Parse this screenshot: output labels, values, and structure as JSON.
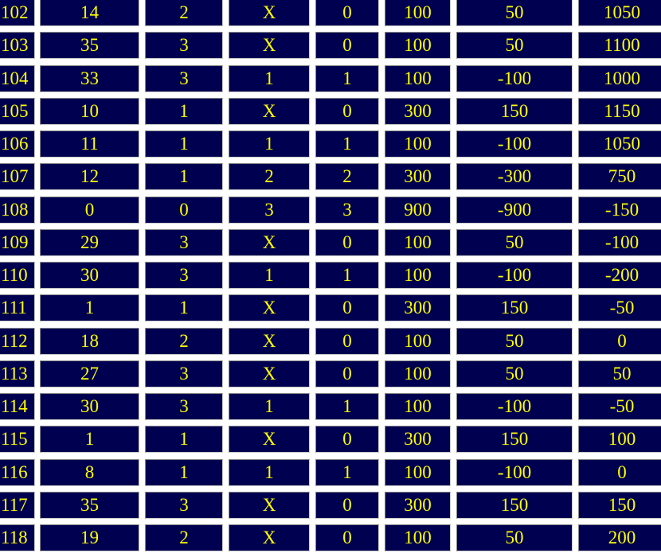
{
  "table": {
    "rows": [
      [
        "102",
        "14",
        "2",
        "X",
        "0",
        "100",
        "50",
        "1050"
      ],
      [
        "103",
        "35",
        "3",
        "X",
        "0",
        "100",
        "50",
        "1100"
      ],
      [
        "104",
        "33",
        "3",
        "1",
        "1",
        "100",
        "-100",
        "1000"
      ],
      [
        "105",
        "10",
        "1",
        "X",
        "0",
        "300",
        "150",
        "1150"
      ],
      [
        "106",
        "11",
        "1",
        "1",
        "1",
        "100",
        "-100",
        "1050"
      ],
      [
        "107",
        "12",
        "1",
        "2",
        "2",
        "300",
        "-300",
        "750"
      ],
      [
        "108",
        "0",
        "0",
        "3",
        "3",
        "900",
        "-900",
        "-150"
      ],
      [
        "109",
        "29",
        "3",
        "X",
        "0",
        "100",
        "50",
        "-100"
      ],
      [
        "110",
        "30",
        "3",
        "1",
        "1",
        "100",
        "-100",
        "-200"
      ],
      [
        "111",
        "1",
        "1",
        "X",
        "0",
        "300",
        "150",
        "-50"
      ],
      [
        "112",
        "18",
        "2",
        "X",
        "0",
        "100",
        "50",
        "0"
      ],
      [
        "113",
        "27",
        "3",
        "X",
        "0",
        "100",
        "50",
        "50"
      ],
      [
        "114",
        "30",
        "3",
        "1",
        "1",
        "100",
        "-100",
        "-50"
      ],
      [
        "115",
        "1",
        "1",
        "X",
        "0",
        "300",
        "150",
        "100"
      ],
      [
        "116",
        "8",
        "1",
        "1",
        "1",
        "100",
        "-100",
        "0"
      ],
      [
        "117",
        "35",
        "3",
        "X",
        "0",
        "300",
        "150",
        "150"
      ],
      [
        "118",
        "19",
        "2",
        "X",
        "0",
        "100",
        "50",
        "200"
      ]
    ]
  },
  "colors": {
    "cell_background": "#000050",
    "text": "#ffff00",
    "page_background": "#ffffff"
  }
}
